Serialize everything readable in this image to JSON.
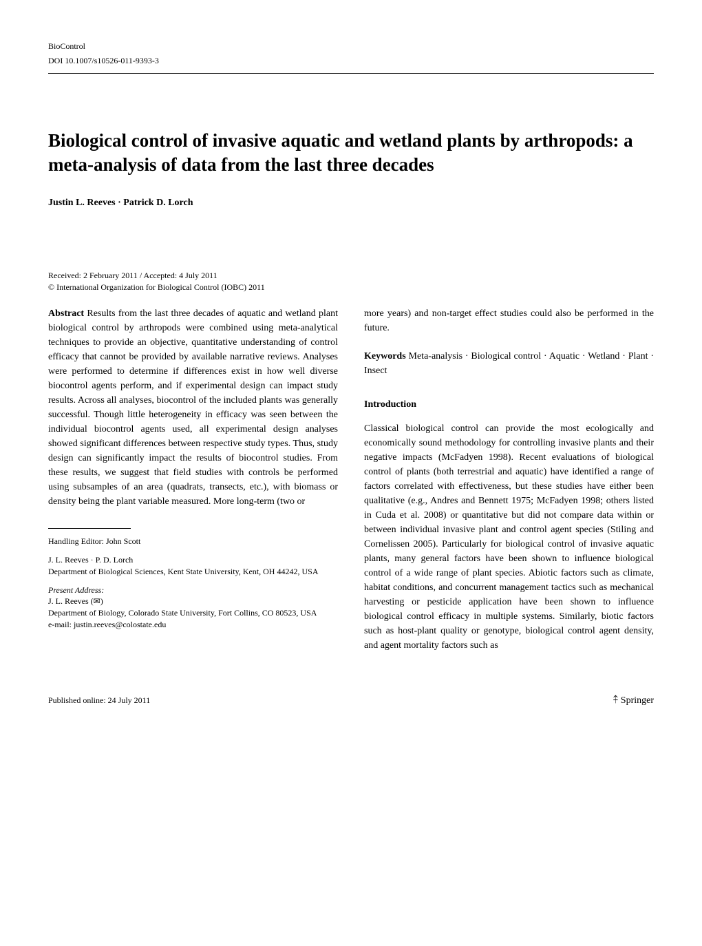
{
  "header": {
    "journal": "BioControl",
    "doi": "DOI 10.1007/s10526-011-9393-3"
  },
  "title": "Biological control of invasive aquatic and wetland plants by arthropods: a meta-analysis of data from the last three decades",
  "authors": "Justin L. Reeves · Patrick D. Lorch",
  "dates": "Received: 2 February 2011 / Accepted: 4 July 2011",
  "copyright": "© International Organization for Biological Control (IOBC) 2011",
  "abstract": {
    "label": "Abstract",
    "text_col1": "Results from the last three decades of aquatic and wetland plant biological control by arthropods were combined using meta-analytical techniques to provide an objective, quantitative understanding of control efficacy that cannot be provided by available narrative reviews. Analyses were performed to determine if differences exist in how well diverse biocontrol agents perform, and if experimental design can impact study results. Across all analyses, biocontrol of the included plants was generally successful. Though little heterogeneity in efficacy was seen between the individual biocontrol agents used, all experimental design analyses showed significant differences between respective study types. Thus, study design can significantly impact the results of biocontrol studies. From these results, we suggest that field studies with controls be performed using subsamples of an area (quadrats, transects, etc.), with biomass or density being the plant variable measured. More long-term (two or",
    "text_col2": "more years) and non-target effect studies could also be performed in the future."
  },
  "keywords": {
    "label": "Keywords",
    "text": "Meta-analysis · Biological control · Aquatic · Wetland · Plant · Insect"
  },
  "introduction": {
    "heading": "Introduction",
    "text": "Classical biological control can provide the most ecologically and economically sound methodology for controlling invasive plants and their negative impacts (McFadyen 1998). Recent evaluations of biological control of plants (both terrestrial and aquatic) have identified a range of factors correlated with effectiveness, but these studies have either been qualitative (e.g., Andres and Bennett 1975; McFadyen 1998; others listed in Cuda et al. 2008) or quantitative but did not compare data within or between individual invasive plant and control agent species (Stiling and Cornelissen 2005). Particularly for biological control of invasive aquatic plants, many general factors have been shown to influence biological control of a wide range of plant species. Abiotic factors such as climate, habitat conditions, and concurrent management tactics such as mechanical harvesting or pesticide application have been shown to influence biological control efficacy in multiple systems. Similarly, biotic factors such as host-plant quality or genotype, biological control agent density, and agent mortality factors such as"
  },
  "footnotes": {
    "handling_editor": "Handling Editor: John Scott",
    "affiliation1_names": "J. L. Reeves · P. D. Lorch",
    "affiliation1_dept": "Department of Biological Sciences, Kent State University, Kent, OH 44242, USA",
    "present_label": "Present Address:",
    "present_name": "J. L. Reeves (✉)",
    "present_dept": "Department of Biology, Colorado State University, Fort Collins, CO 80523, USA",
    "present_email": "e-mail: justin.reeves@colostate.edu"
  },
  "footer": {
    "published": "Published online: 24 July 2011",
    "publisher": "Springer"
  }
}
